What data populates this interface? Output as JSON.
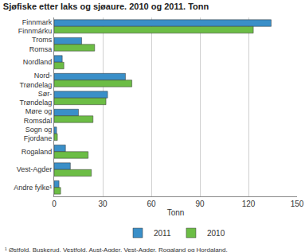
{
  "chart_data": {
    "type": "bar",
    "orientation": "horizontal",
    "title": "Sjøfiske etter laks og sjøaure. 2010 og 2011. Tonn",
    "x_label": "Tonn",
    "categories": [
      "Finnmark\nFinnmárku",
      "Troms\nRomsa",
      "Nordland",
      "Nord-\nTrøndelag",
      "Sør-\nTrøndelag",
      "Møre og\nRomsdal",
      "Sogn og\nFjordane",
      "Rogaland",
      "Vest-Agder",
      "Andre fylke¹"
    ],
    "series": [
      {
        "name": "2011",
        "color": "#3a8fc8",
        "values": [
          134,
          17,
          5,
          44,
          33,
          15,
          1.5,
          7,
          10,
          3
        ]
      },
      {
        "name": "2010",
        "color": "#6cbd45",
        "values": [
          123,
          25,
          6,
          48,
          32,
          24,
          2,
          21,
          23,
          4
        ]
      }
    ],
    "xlim": [
      0,
      150
    ],
    "xticks": [
      0,
      30,
      60,
      90,
      120,
      150
    ],
    "grid": true,
    "legend": "bottom",
    "annotations": [
      "¹ Østfold, Buskerud, Vestfold, Aust-Agder, Vest-Agder, Rogaland og Hordaland."
    ]
  }
}
